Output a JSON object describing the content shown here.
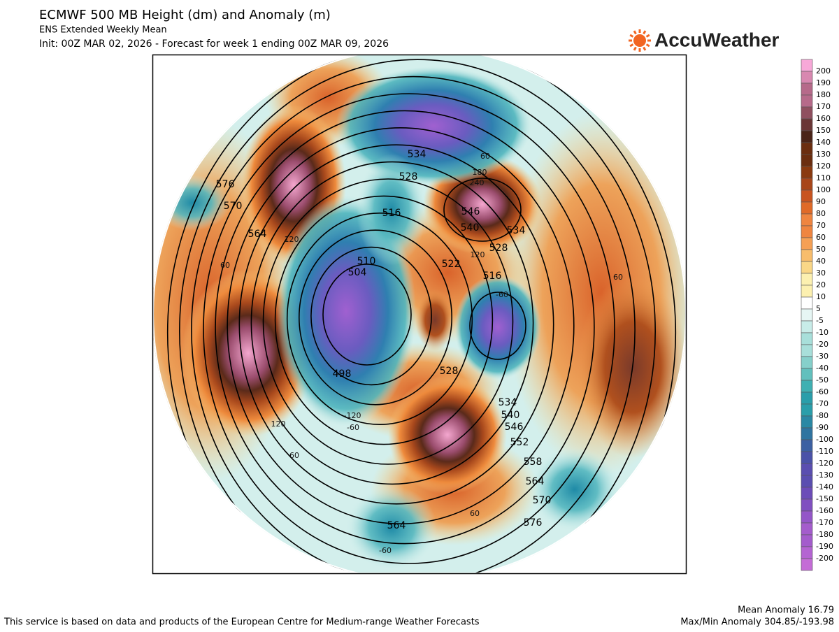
{
  "header": {
    "title": "ECMWF 500 MB Height (dm) and Anomaly (m)",
    "subtitle": "ENS Extended Weekly Mean",
    "init": "Init: 00Z MAR 02, 2026 - Forecast for week 1 ending 00Z MAR 09, 2026"
  },
  "logo": {
    "text": "AccuWeather"
  },
  "colorbar": {
    "labels": [
      200,
      190,
      180,
      170,
      160,
      150,
      140,
      130,
      120,
      110,
      100,
      90,
      80,
      70,
      60,
      50,
      40,
      30,
      20,
      10,
      5,
      -5,
      -10,
      -20,
      -30,
      -40,
      -50,
      -60,
      -70,
      -80,
      -90,
      -100,
      -110,
      -120,
      -130,
      -140,
      -150,
      -160,
      -170,
      -180,
      -190,
      -200
    ]
  },
  "map": {
    "height_labels": [
      "576",
      "570",
      "564",
      "534",
      "528",
      "516",
      "510",
      "504",
      "498",
      "546",
      "540",
      "534",
      "528",
      "522",
      "516",
      "528",
      "534",
      "540",
      "546",
      "552",
      "558",
      "564",
      "570",
      "576",
      "564"
    ],
    "anomaly_labels": [
      "60",
      "180",
      "240",
      "120",
      "60",
      "120",
      "60",
      "-120",
      "-60",
      "-60",
      "-60",
      "60",
      "60",
      "120"
    ]
  },
  "footer": {
    "source": "This service is based on data and products of the European Centre for Medium-range Weather Forecasts",
    "mean": "Mean Anomaly 16.79",
    "maxmin": "Max/Min Anomaly 304.85/-193.98"
  }
}
